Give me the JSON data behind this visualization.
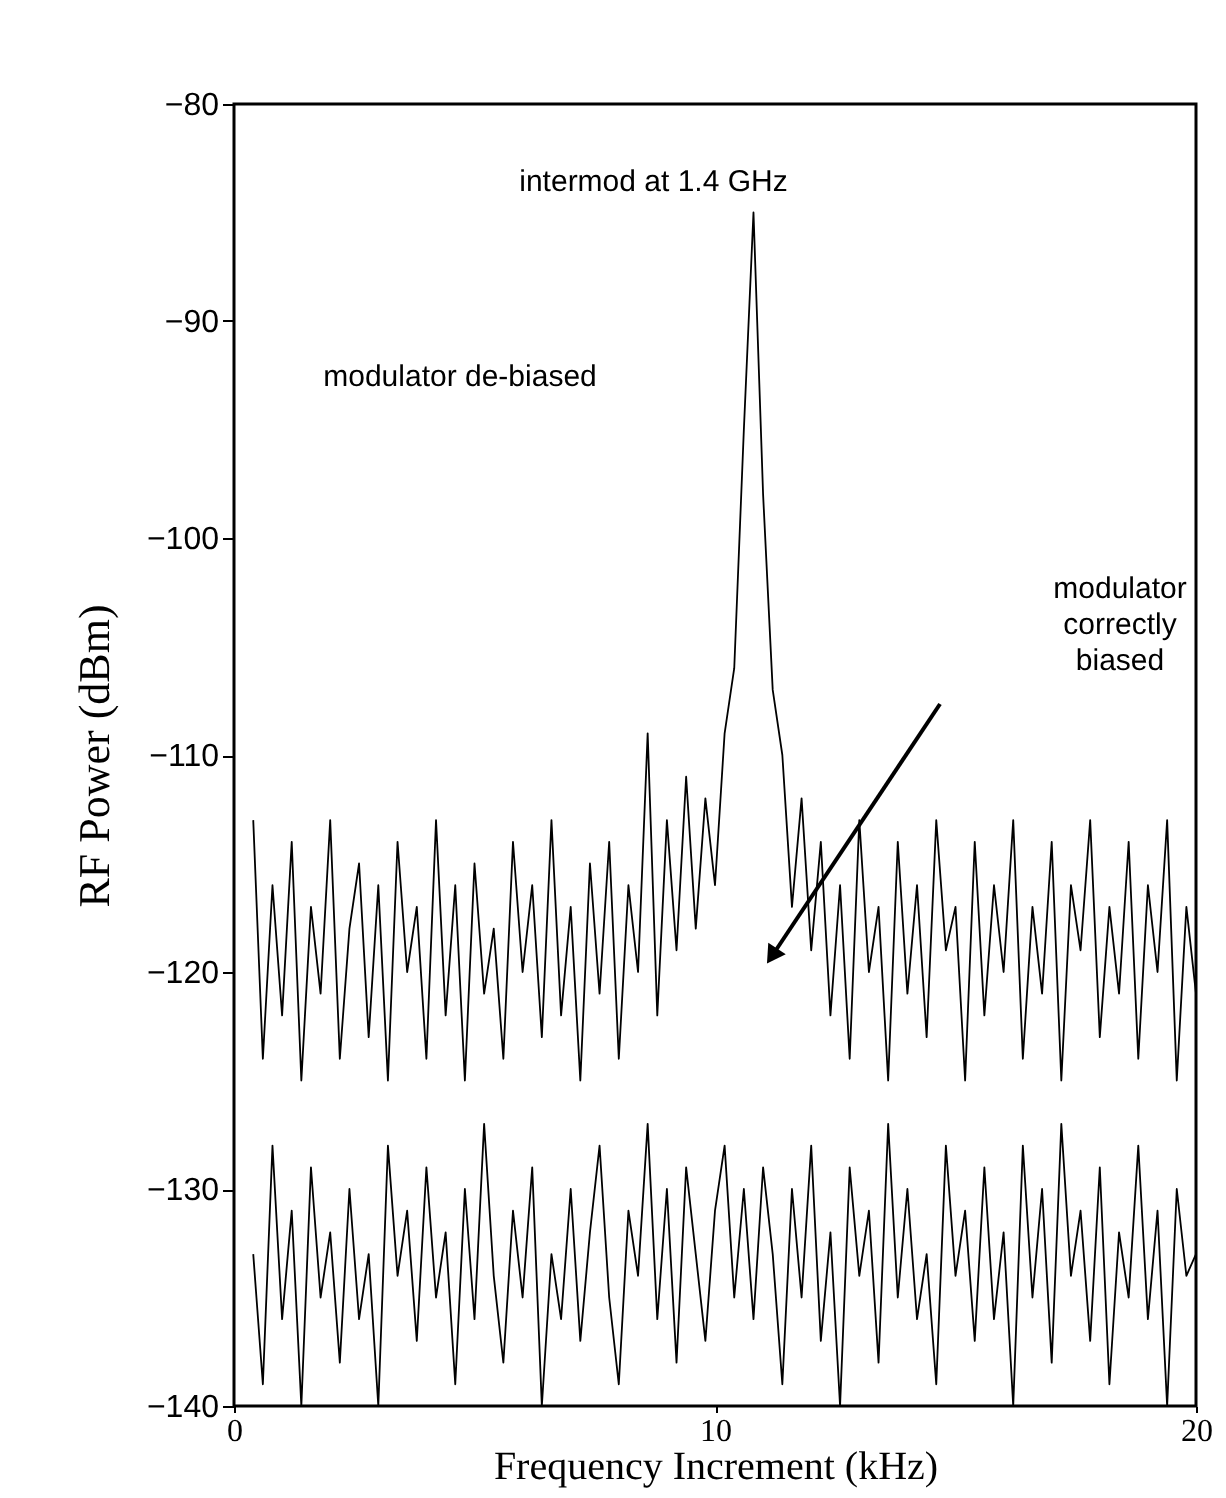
{
  "chart_data": {
    "type": "line",
    "xlabel": "Frequency Increment (kHz)",
    "ylabel": "RF Power (dBm)",
    "xlim": [
      0,
      20
    ],
    "xticks": [
      0,
      10,
      20
    ],
    "ylim": [
      -140,
      -80
    ],
    "yticks": [
      -140,
      -130,
      -120,
      -110,
      -100,
      -90,
      -80
    ],
    "grid": false,
    "x": [
      0.4,
      0.6,
      0.8,
      1.0,
      1.2,
      1.4,
      1.6,
      1.8,
      2.0,
      2.2,
      2.4,
      2.6,
      2.8,
      3.0,
      3.2,
      3.4,
      3.6,
      3.8,
      4.0,
      4.2,
      4.4,
      4.6,
      4.8,
      5.0,
      5.2,
      5.4,
      5.6,
      5.8,
      6.0,
      6.2,
      6.4,
      6.6,
      6.8,
      7.0,
      7.2,
      7.4,
      7.6,
      7.8,
      8.0,
      8.2,
      8.4,
      8.6,
      8.8,
      9.0,
      9.2,
      9.4,
      9.6,
      9.8,
      10.0,
      10.2,
      10.4,
      10.6,
      10.8,
      11.0,
      11.2,
      11.4,
      11.6,
      11.8,
      12.0,
      12.2,
      12.4,
      12.6,
      12.8,
      13.0,
      13.2,
      13.4,
      13.6,
      13.8,
      14.0,
      14.2,
      14.4,
      14.6,
      14.8,
      15.0,
      15.2,
      15.4,
      15.6,
      15.8,
      16.0,
      16.2,
      16.4,
      16.6,
      16.8,
      17.0,
      17.2,
      17.4,
      17.6,
      17.8,
      18.0,
      18.2,
      18.4,
      18.6,
      18.8,
      19.0,
      19.2,
      19.4,
      19.6,
      19.8,
      20.0
    ],
    "series": [
      {
        "color": "#000000",
        "values": [
          -113,
          -124,
          -116,
          -122,
          -114,
          -125,
          -117,
          -121,
          -113,
          -124,
          -118,
          -115,
          -123,
          -116,
          -125,
          -114,
          -120,
          -117,
          -124,
          -113,
          -122,
          -116,
          -125,
          -115,
          -121,
          -118,
          -124,
          -114,
          -120,
          -116,
          -123,
          -113,
          -122,
          -117,
          -125,
          -115,
          -121,
          -114,
          -124,
          -116,
          -120,
          -109,
          -122,
          -113,
          -119,
          -111,
          -118,
          -112,
          -116,
          -109,
          -106,
          -95,
          -85,
          -98,
          -107,
          -110,
          -117,
          -112,
          -119,
          -114,
          -122,
          -116,
          -124,
          -113,
          -120,
          -117,
          -125,
          -114,
          -121,
          -116,
          -123,
          -113,
          -119,
          -117,
          -125,
          -114,
          -122,
          -116,
          -120,
          -113,
          -124,
          -117,
          -121,
          -114,
          -125,
          -116,
          -119,
          -113,
          -123,
          -117,
          -121,
          -114,
          -124,
          -116,
          -120,
          -113,
          -125,
          -117,
          -121
        ]
      },
      {
        "color": "#000000",
        "values": [
          -133,
          -139,
          -128,
          -136,
          -131,
          -140,
          -129,
          -135,
          -132,
          -138,
          -130,
          -136,
          -133,
          -140,
          -128,
          -134,
          -131,
          -137,
          -129,
          -135,
          -132,
          -139,
          -130,
          -136,
          -127,
          -134,
          -138,
          -131,
          -135,
          -129,
          -140,
          -133,
          -136,
          -130,
          -137,
          -132,
          -128,
          -135,
          -139,
          -131,
          -134,
          -127,
          -136,
          -130,
          -138,
          -129,
          -133,
          -137,
          -131,
          -128,
          -135,
          -130,
          -136,
          -129,
          -133,
          -139,
          -130,
          -135,
          -128,
          -137,
          -132,
          -140,
          -129,
          -134,
          -131,
          -138,
          -127,
          -135,
          -130,
          -136,
          -133,
          -139,
          -128,
          -134,
          -131,
          -137,
          -129,
          -136,
          -132,
          -140,
          -128,
          -135,
          -130,
          -138,
          -127,
          -134,
          -131,
          -137,
          -129,
          -139,
          -132,
          -135,
          -128,
          -136,
          -131,
          -140,
          -130,
          -134,
          -133
        ]
      }
    ],
    "annotations": [
      {
        "text": "intermod at 1.4 GHz",
        "x": 10.8,
        "y": -85
      },
      "modulator de-biased",
      "modulator correctly biased"
    ]
  }
}
